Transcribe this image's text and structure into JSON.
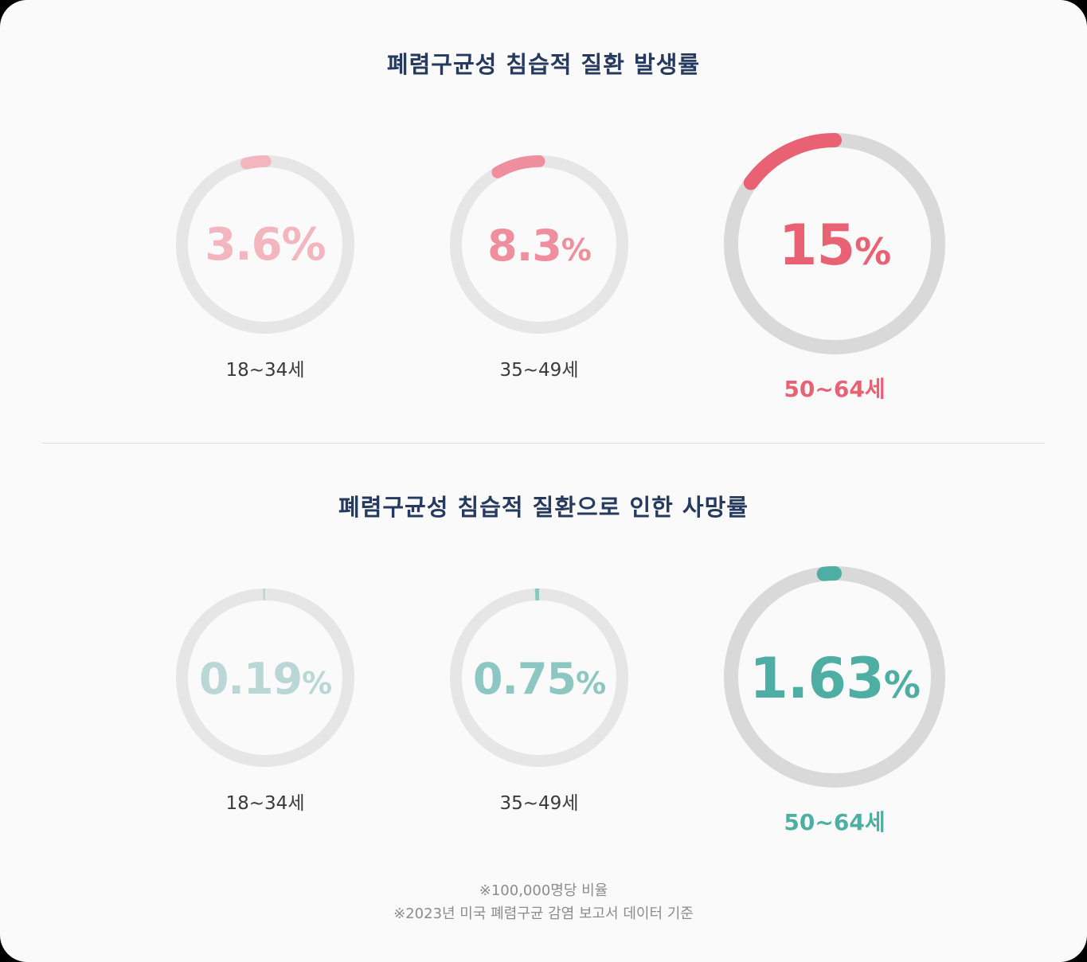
{
  "sections": [
    {
      "title": "폐렴구균성 침습적 질환 발생률",
      "items": [
        {
          "age": "18~34세",
          "value": "3.6",
          "unit": "%",
          "percent": 3.6,
          "color": "#f3b5be",
          "emphasis": false
        },
        {
          "age": "35~49세",
          "value": "8.3",
          "unit": "%",
          "percent": 8.3,
          "color": "#ef8f9d",
          "emphasis": false
        },
        {
          "age": "50~64세",
          "value": "15",
          "unit": "%",
          "percent": 15,
          "color": "#e96274",
          "emphasis": true
        }
      ]
    },
    {
      "title": "폐렴구균성 침습적 질환으로 인한 사망률",
      "items": [
        {
          "age": "18~34세",
          "value": "0.19",
          "unit": "%",
          "percent": 0.19,
          "color": "#b9d7d4",
          "emphasis": false
        },
        {
          "age": "35~49세",
          "value": "0.75",
          "unit": "%",
          "percent": 0.75,
          "color": "#8cc7c2",
          "emphasis": false
        },
        {
          "age": "50~64세",
          "value": "1.63",
          "unit": "%",
          "percent": 1.63,
          "color": "#4eaea4",
          "emphasis": true
        }
      ]
    }
  ],
  "footnotes": [
    "※100,000명당 비율",
    "※2023년 미국 폐렴구균 감염 보고서 데이터 기준"
  ],
  "colors": {
    "title": "#253a5e",
    "track_small": "#e6e6e6",
    "track_big": "#d9d9d9",
    "background": "#fafafa"
  },
  "chart_data": [
    {
      "type": "radial-progress",
      "title": "폐렴구균성 침습적 질환 발생률",
      "categories": [
        "18~34세",
        "35~49세",
        "50~64세"
      ],
      "values": [
        3.6,
        8.3,
        15
      ],
      "unit": "%",
      "colors": [
        "#f3b5be",
        "#ef8f9d",
        "#e96274"
      ],
      "direction": "counter-clockwise from top"
    },
    {
      "type": "radial-progress",
      "title": "폐렴구균성 침습적 질환으로 인한 사망률",
      "categories": [
        "18~34세",
        "35~49세",
        "50~64세"
      ],
      "values": [
        0.19,
        0.75,
        1.63
      ],
      "unit": "%",
      "colors": [
        "#b9d7d4",
        "#8cc7c2",
        "#4eaea4"
      ],
      "direction": "counter-clockwise from top"
    }
  ]
}
